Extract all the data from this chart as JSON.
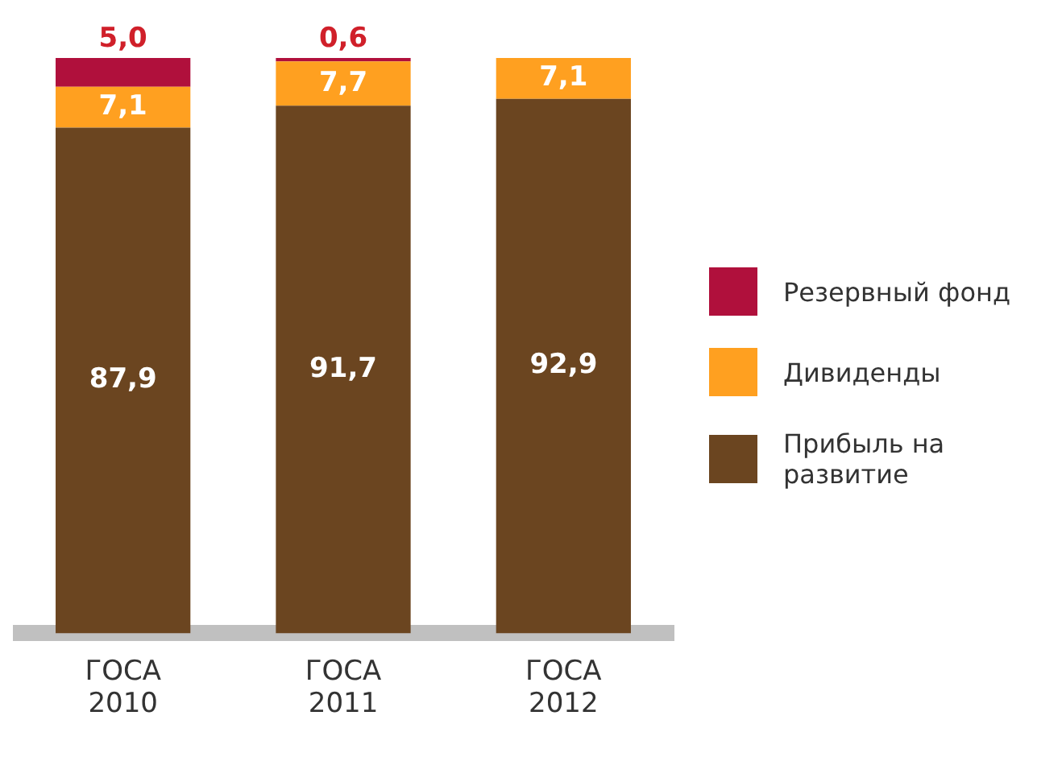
{
  "chart_data": {
    "type": "bar",
    "stacked": true,
    "categories": [
      "ГОСА 2010",
      "ГОСА 2011",
      "ГОСА 2012"
    ],
    "series": [
      {
        "name": "Прибыль на развитие",
        "color": "#6b4520",
        "values": [
          87.9,
          91.7,
          92.9
        ],
        "value_labels": [
          "87,9",
          "91,7",
          "92,9"
        ]
      },
      {
        "name": "Дивиденды",
        "color": "#ffa020",
        "values": [
          7.1,
          7.7,
          7.1
        ],
        "value_labels": [
          "7,1",
          "7,7",
          "7,1"
        ]
      },
      {
        "name": "Резервный фонд",
        "color": "#b0103c",
        "values": [
          5.0,
          0.6,
          null
        ],
        "value_labels": [
          "5,0",
          "0,6",
          null
        ]
      }
    ],
    "tick_labels": "x",
    "grid": false,
    "legend": "right"
  }
}
